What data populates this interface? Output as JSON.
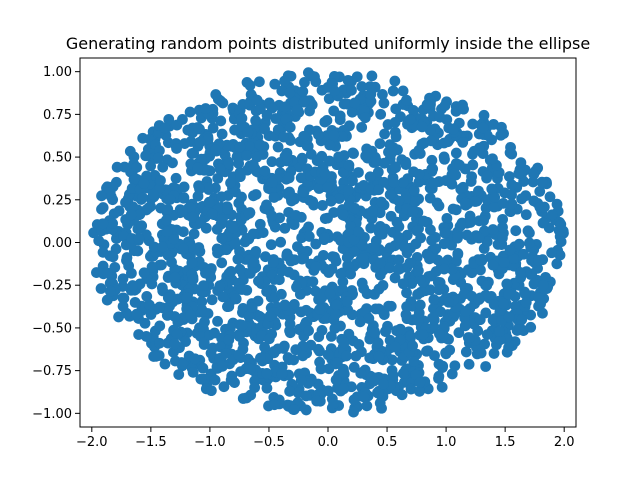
{
  "chart_data": {
    "type": "scatter",
    "title": "Generating random points distributed uniformly inside the ellipse",
    "xlabel": "",
    "ylabel": "",
    "xlim": [
      -2.1,
      2.1
    ],
    "ylim": [
      -1.08,
      1.08
    ],
    "xticks": [
      -2.0,
      -1.5,
      -1.0,
      -0.5,
      0.0,
      0.5,
      1.0,
      1.5,
      2.0
    ],
    "xtick_labels": [
      "−2.0",
      "−1.5",
      "−1.0",
      "−0.5",
      "0.0",
      "0.5",
      "1.0",
      "1.5",
      "2.0"
    ],
    "yticks": [
      -1.0,
      -0.75,
      -0.5,
      -0.25,
      0.0,
      0.25,
      0.5,
      0.75,
      1.0
    ],
    "ytick_labels": [
      "−1.00",
      "−0.75",
      "−0.50",
      "−0.25",
      "0.00",
      "0.25",
      "0.50",
      "0.75",
      "1.00"
    ],
    "grid": false,
    "legend": "none",
    "point_color": "#1f77b4",
    "ellipse": {
      "semi_major_x": 2.0,
      "semi_minor_y": 1.0
    },
    "num_points": 2000
  }
}
